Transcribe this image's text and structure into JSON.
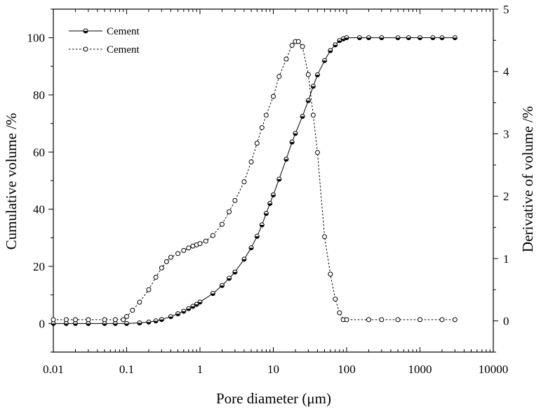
{
  "chart_data": {
    "type": "line",
    "xlabel": "Pore diameter (μm)",
    "ylabel_left": "Cumulative volume /%",
    "ylabel_right": "Derivative of volume /%",
    "x_scale": "log",
    "xlim": [
      0.01,
      10000
    ],
    "ylim_left": [
      -10,
      110
    ],
    "ylim_right": [
      -0.5,
      5
    ],
    "x_ticks": [
      "0.01",
      "0.1",
      "1",
      "10",
      "100",
      "1000",
      "10000"
    ],
    "y_ticks_left": [
      "0",
      "20",
      "40",
      "60",
      "80",
      "100"
    ],
    "y_ticks_right": [
      "0",
      "1",
      "2",
      "3",
      "4",
      "5"
    ],
    "grid": false,
    "legend_position": "top-left",
    "series": [
      {
        "name": "Cement",
        "axis": "left",
        "style": "solid line, half-filled circle markers",
        "points": [
          [
            0.01,
            0
          ],
          [
            0.015,
            0
          ],
          [
            0.02,
            0
          ],
          [
            0.03,
            0
          ],
          [
            0.05,
            0
          ],
          [
            0.07,
            0
          ],
          [
            0.1,
            0
          ],
          [
            0.15,
            0.2
          ],
          [
            0.2,
            0.5
          ],
          [
            0.25,
            0.9
          ],
          [
            0.3,
            1.4
          ],
          [
            0.4,
            2.4
          ],
          [
            0.5,
            3.4
          ],
          [
            0.6,
            4.3
          ],
          [
            0.7,
            5.2
          ],
          [
            0.8,
            6.0
          ],
          [
            0.9,
            6.7
          ],
          [
            1,
            7.5
          ],
          [
            1.5,
            10.5
          ],
          [
            2,
            13.3
          ],
          [
            2.5,
            15.8
          ],
          [
            3,
            18.0
          ],
          [
            4,
            22.5
          ],
          [
            5,
            26.5
          ],
          [
            6,
            30.5
          ],
          [
            7,
            34.5
          ],
          [
            8,
            38.5
          ],
          [
            9,
            42
          ],
          [
            10,
            45
          ],
          [
            12,
            50.5
          ],
          [
            15,
            57.5
          ],
          [
            18,
            63.5
          ],
          [
            20,
            66.5
          ],
          [
            25,
            72.5
          ],
          [
            30,
            78
          ],
          [
            35,
            83
          ],
          [
            40,
            87
          ],
          [
            50,
            92
          ],
          [
            60,
            95.5
          ],
          [
            70,
            97.5
          ],
          [
            80,
            99
          ],
          [
            90,
            99.6
          ],
          [
            100,
            100
          ],
          [
            150,
            100
          ],
          [
            200,
            100
          ],
          [
            300,
            100
          ],
          [
            500,
            100
          ],
          [
            700,
            100
          ],
          [
            1000,
            100
          ],
          [
            1500,
            100
          ],
          [
            2000,
            100
          ],
          [
            3000,
            100
          ]
        ]
      },
      {
        "name": "Cement",
        "axis": "right",
        "style": "dashed line, open circle markers",
        "points": [
          [
            0.01,
            0.02
          ],
          [
            0.015,
            0.02
          ],
          [
            0.02,
            0.02
          ],
          [
            0.03,
            0.02
          ],
          [
            0.05,
            0.02
          ],
          [
            0.07,
            0.02
          ],
          [
            0.09,
            0.02
          ],
          [
            0.1,
            0.07
          ],
          [
            0.12,
            0.17
          ],
          [
            0.15,
            0.3
          ],
          [
            0.2,
            0.5
          ],
          [
            0.25,
            0.7
          ],
          [
            0.3,
            0.85
          ],
          [
            0.35,
            0.95
          ],
          [
            0.4,
            1.02
          ],
          [
            0.5,
            1.08
          ],
          [
            0.6,
            1.13
          ],
          [
            0.7,
            1.17
          ],
          [
            0.8,
            1.2
          ],
          [
            0.9,
            1.22
          ],
          [
            1,
            1.24
          ],
          [
            1.2,
            1.28
          ],
          [
            1.5,
            1.37
          ],
          [
            2,
            1.55
          ],
          [
            2.5,
            1.75
          ],
          [
            3,
            1.93
          ],
          [
            4,
            2.23
          ],
          [
            5,
            2.55
          ],
          [
            6,
            2.85
          ],
          [
            7,
            3.1
          ],
          [
            8,
            3.3
          ],
          [
            10,
            3.6
          ],
          [
            12,
            3.92
          ],
          [
            15,
            4.2
          ],
          [
            18,
            4.42
          ],
          [
            20,
            4.48
          ],
          [
            22,
            4.48
          ],
          [
            25,
            4.4
          ],
          [
            30,
            3.95
          ],
          [
            35,
            3.3
          ],
          [
            40,
            2.7
          ],
          [
            50,
            1.35
          ],
          [
            60,
            0.75
          ],
          [
            70,
            0.35
          ],
          [
            80,
            0.13
          ],
          [
            90,
            0.02
          ],
          [
            100,
            0.02
          ],
          [
            200,
            0.02
          ],
          [
            300,
            0.02
          ],
          [
            500,
            0.02
          ],
          [
            1000,
            0.02
          ],
          [
            2000,
            0.02
          ],
          [
            3000,
            0.02
          ]
        ]
      }
    ]
  }
}
